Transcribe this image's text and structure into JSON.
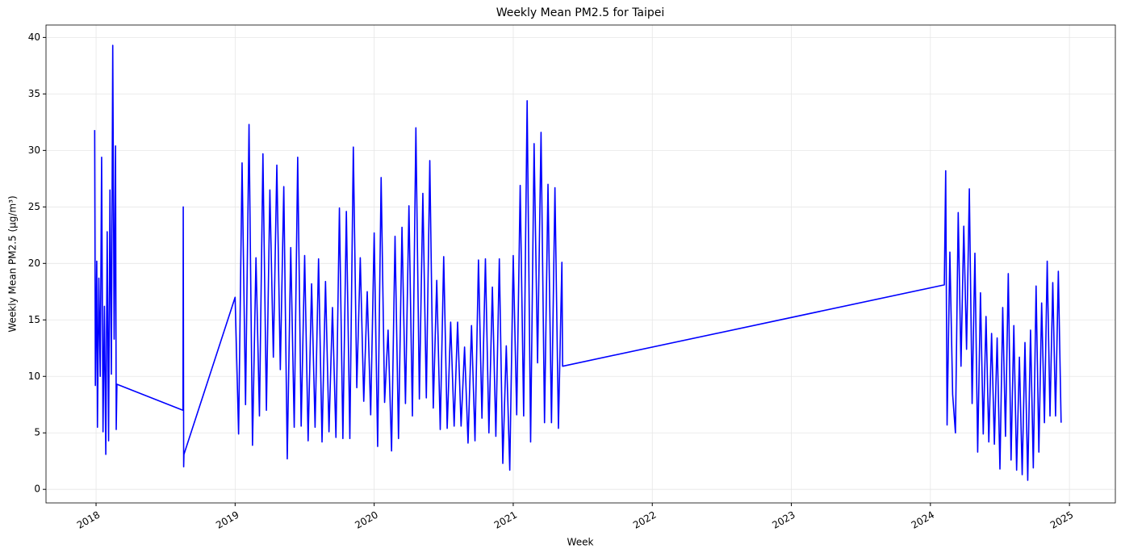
{
  "chart_data": {
    "type": "line",
    "title": "Weekly Mean PM2.5 for Taipei",
    "x_label": "Week",
    "y_label": "Weekly Mean PM2.5 (µg/m³)",
    "color": "#0000ff",
    "grid": true,
    "xlim": [
      2017.64,
      2025.33
    ],
    "xticks": [
      2018,
      2019,
      2020,
      2021,
      2022,
      2023,
      2024,
      2025
    ],
    "ylim": [
      -1.2,
      41.1
    ],
    "yticks": [
      0,
      5,
      10,
      15,
      20,
      25,
      30,
      35,
      40
    ],
    "x": [
      2017.99,
      2017.995,
      2018.005,
      2018.01,
      2018.02,
      2018.03,
      2018.04,
      2018.05,
      2018.06,
      2018.07,
      2018.08,
      2018.09,
      2018.1,
      2018.11,
      2018.12,
      2018.13,
      2018.14,
      2018.145,
      2018.15,
      2018.625,
      2018.627,
      2018.63,
      2018.632,
      2019,
      2019.025,
      2019.05,
      2019.075,
      2019.1,
      2019.125,
      2019.15,
      2019.175,
      2019.2,
      2019.225,
      2019.25,
      2019.275,
      2019.3,
      2019.325,
      2019.35,
      2019.375,
      2019.4,
      2019.425,
      2019.45,
      2019.475,
      2019.5,
      2019.525,
      2019.55,
      2019.575,
      2019.6,
      2019.625,
      2019.65,
      2019.675,
      2019.7,
      2019.725,
      2019.75,
      2019.775,
      2019.8,
      2019.825,
      2019.85,
      2019.875,
      2019.9,
      2019.925,
      2019.95,
      2019.975,
      2020,
      2020.025,
      2020.05,
      2020.075,
      2020.1,
      2020.125,
      2020.15,
      2020.175,
      2020.2,
      2020.225,
      2020.25,
      2020.275,
      2020.3,
      2020.325,
      2020.35,
      2020.375,
      2020.4,
      2020.425,
      2020.45,
      2020.475,
      2020.5,
      2020.525,
      2020.55,
      2020.575,
      2020.6,
      2020.625,
      2020.65,
      2020.675,
      2020.7,
      2020.725,
      2020.75,
      2020.775,
      2020.8,
      2020.825,
      2020.85,
      2020.875,
      2020.9,
      2020.925,
      2020.95,
      2020.975,
      2021,
      2021.025,
      2021.05,
      2021.075,
      2021.1,
      2021.125,
      2021.15,
      2021.175,
      2021.2,
      2021.225,
      2021.25,
      2021.275,
      2021.3,
      2021.325,
      2021.35,
      2021.355,
      2024.1,
      2024.11,
      2024.12,
      2024.14,
      2024.16,
      2024.18,
      2024.2,
      2024.22,
      2024.24,
      2024.26,
      2024.28,
      2024.3,
      2024.32,
      2024.34,
      2024.36,
      2024.38,
      2024.4,
      2024.42,
      2024.44,
      2024.46,
      2024.48,
      2024.5,
      2024.52,
      2024.54,
      2024.56,
      2024.58,
      2024.6,
      2024.62,
      2024.64,
      2024.66,
      2024.68,
      2024.7,
      2024.72,
      2024.74,
      2024.76,
      2024.78,
      2024.8,
      2024.82,
      2024.84,
      2024.86,
      2024.88,
      2024.9,
      2024.92,
      2024.94
    ],
    "values": [
      31.8,
      9.2,
      20.2,
      5.5,
      18.7,
      10,
      29.4,
      5.1,
      16.2,
      3.1,
      22.8,
      4.3,
      26.5,
      10.2,
      39.3,
      13.3,
      30.4,
      5.3,
      9.3,
      7,
      25,
      2,
      3.1,
      17,
      4.9,
      28.9,
      7.5,
      32.3,
      3.9,
      20.5,
      6.5,
      29.7,
      7,
      26.5,
      11.7,
      28.7,
      10.6,
      26.8,
      2.7,
      21.4,
      5.5,
      29.4,
      5.6,
      20.7,
      4.3,
      18.2,
      5.5,
      20.4,
      4.2,
      18.4,
      5.1,
      16.1,
      4.6,
      24.9,
      4.5,
      24.6,
      4.5,
      30.3,
      9,
      20.5,
      7.8,
      17.5,
      6.6,
      22.7,
      3.8,
      27.6,
      7.7,
      14.1,
      3.4,
      22.4,
      4.5,
      23.2,
      7.6,
      25.1,
      6.5,
      32,
      8,
      26.2,
      8.1,
      29.1,
      7.2,
      18.5,
      5.3,
      20.6,
      5.4,
      14.8,
      5.6,
      14.8,
      5.6,
      12.6,
      4.1,
      14.5,
      4.3,
      20.3,
      6.3,
      20.4,
      5,
      17.9,
      4.7,
      20.4,
      2.3,
      12.7,
      1.7,
      20.7,
      6.6,
      26.9,
      6.5,
      34.4,
      4.2,
      30.6,
      11.2,
      31.6,
      5.9,
      27,
      5.9,
      26.7,
      5.4,
      20.1,
      10.9,
      18.1,
      28.2,
      5.7,
      21,
      8.4,
      5,
      24.5,
      10.9,
      23.3,
      12.4,
      26.6,
      7.6,
      20.9,
      3.3,
      17.4,
      4.9,
      15.3,
      4.2,
      13.8,
      4,
      13.4,
      1.8,
      16.1,
      4.7,
      19.1,
      2.6,
      14.5,
      1.7,
      11.7,
      1.3,
      13,
      0.8,
      14.1,
      1.9,
      18,
      3.3,
      16.5,
      5.9,
      20.2,
      6.5,
      18.3,
      6.5,
      19.3,
      5.9
    ]
  }
}
